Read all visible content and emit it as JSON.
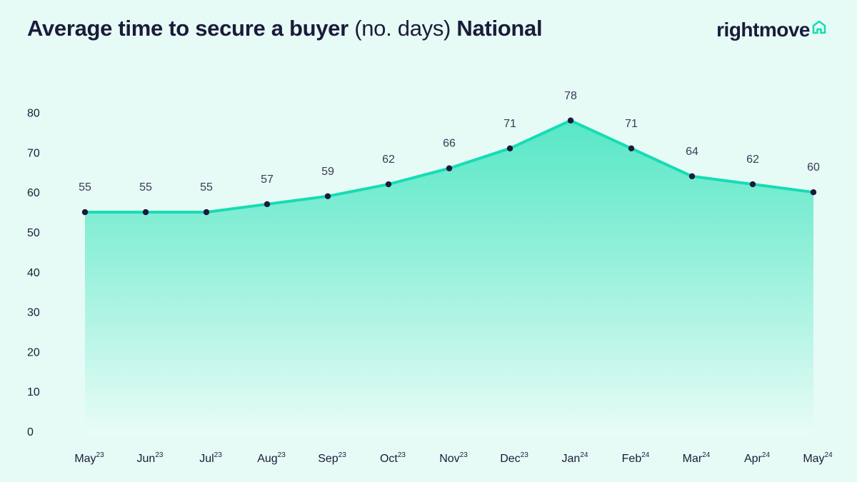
{
  "header": {
    "title_bold": "Average time to secure a buyer",
    "title_light": "(no. days)",
    "title_region": "National"
  },
  "brand": {
    "name": "rightmove",
    "icon": "house-icon",
    "colors": {
      "accent": "#16dcb4",
      "text": "#1b1b3a",
      "background": "#e6fbf5"
    }
  },
  "chart_data": {
    "type": "area",
    "title": "Average time to secure a buyer (no. days) National",
    "xlabel": "",
    "ylabel": "",
    "ylim": [
      0,
      80
    ],
    "yticks": [
      0,
      10,
      20,
      30,
      40,
      50,
      60,
      70,
      80
    ],
    "categories": [
      {
        "month": "May",
        "year": "23"
      },
      {
        "month": "Jun",
        "year": "23"
      },
      {
        "month": "Jul",
        "year": "23"
      },
      {
        "month": "Aug",
        "year": "23"
      },
      {
        "month": "Sep",
        "year": "23"
      },
      {
        "month": "Oct",
        "year": "23"
      },
      {
        "month": "Nov",
        "year": "23"
      },
      {
        "month": "Dec",
        "year": "23"
      },
      {
        "month": "Jan",
        "year": "24"
      },
      {
        "month": "Feb",
        "year": "24"
      },
      {
        "month": "Mar",
        "year": "24"
      },
      {
        "month": "Apr",
        "year": "24"
      },
      {
        "month": "May",
        "year": "24"
      }
    ],
    "values": [
      55,
      55,
      55,
      57,
      59,
      62,
      66,
      71,
      78,
      71,
      64,
      62,
      60
    ],
    "grid": false,
    "data_labels": true,
    "line_color": "#16dcb4",
    "marker_color": "#1b1b3a"
  }
}
